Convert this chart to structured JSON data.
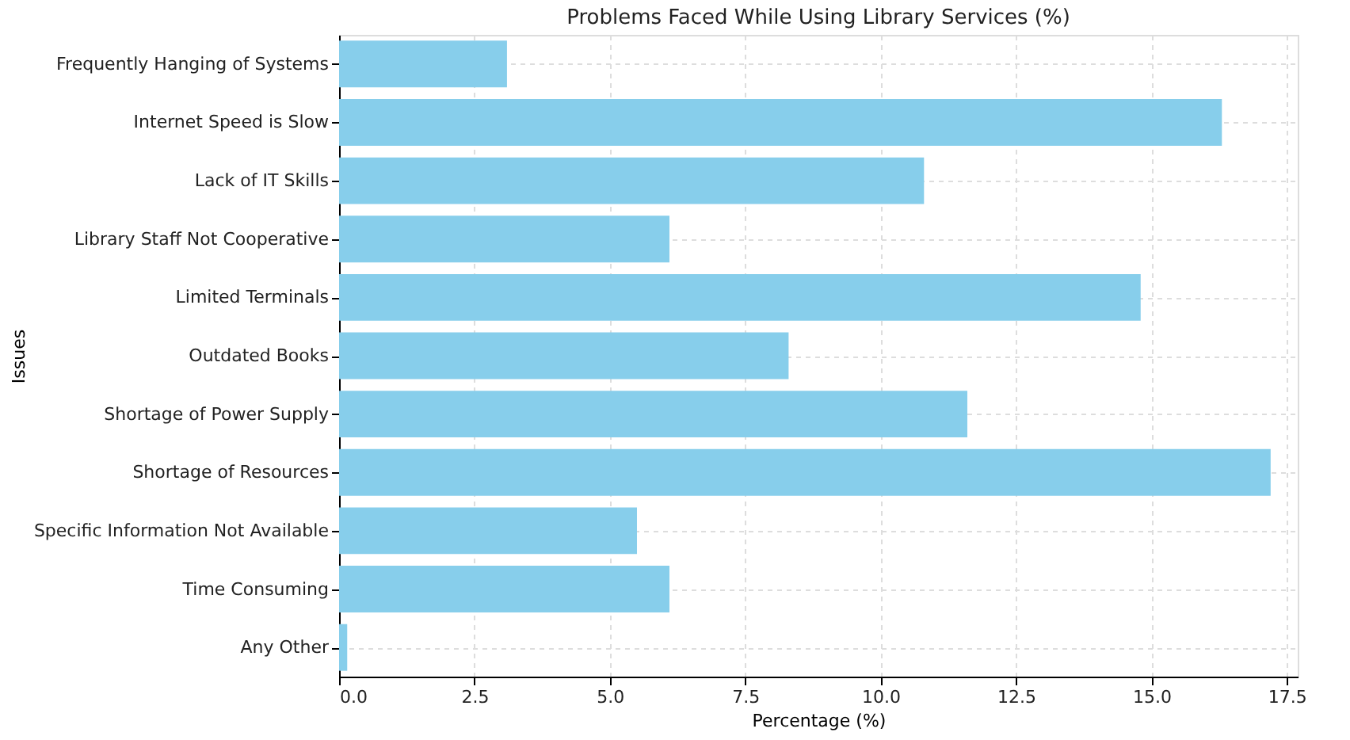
{
  "chart_data": {
    "type": "bar",
    "orientation": "horizontal",
    "title": "Problems Faced While Using Library Services (%)",
    "xlabel": "Percentage (%)",
    "ylabel": "Issues",
    "categories": [
      "Frequently Hanging of Systems",
      "Internet Speed is Slow",
      "Lack of IT Skills",
      "Library Staff Not Cooperative",
      "Limited Terminals",
      "Outdated Books",
      "Shortage of Power Supply",
      "Shortage of Resources",
      "Specific Information Not Available",
      "Time Consuming",
      "Any Other"
    ],
    "values": [
      3.1,
      16.3,
      10.8,
      6.1,
      14.8,
      8.3,
      11.6,
      17.2,
      5.5,
      6.1,
      0.15
    ],
    "color": "#87ceeb",
    "xlim": [
      0,
      17.7
    ],
    "xticks": [
      {
        "value": 0,
        "label": "0.0"
      },
      {
        "value": 2.5,
        "label": "2.5"
      },
      {
        "value": 5,
        "label": "5.0"
      },
      {
        "value": 7.5,
        "label": "7.5"
      },
      {
        "value": 10,
        "label": "10.0"
      },
      {
        "value": 12.5,
        "label": "12.5"
      },
      {
        "value": 15,
        "label": "15.0"
      },
      {
        "value": 17.5,
        "label": "17.5"
      }
    ],
    "grid": true
  }
}
